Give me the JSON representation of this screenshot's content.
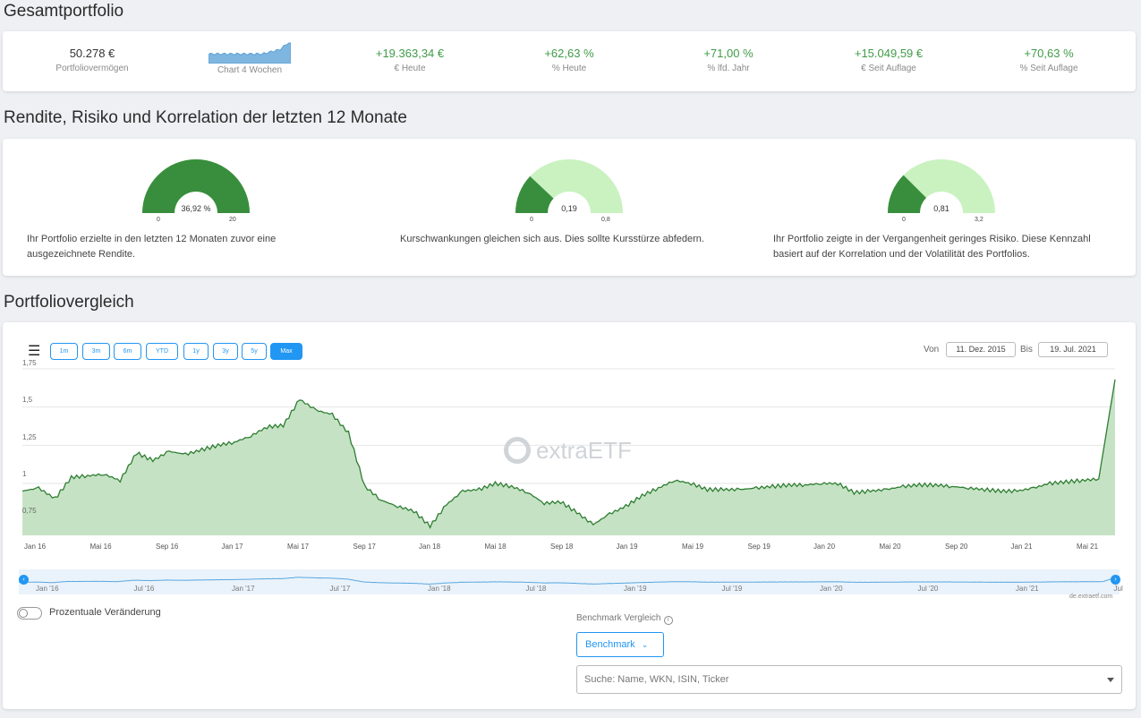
{
  "sections": {
    "overview_title": "Gesamtportfolio",
    "risk_title": "Rendite, Risiko und Korrelation der letzten 12 Monate",
    "compare_title": "Portfoliovergleich"
  },
  "kpis": [
    {
      "value": "50.278 €",
      "label": "Portfoliovermögen"
    },
    {
      "value": "",
      "label": "Chart 4 Wochen"
    },
    {
      "value": "+19.363,34  €",
      "label": "€ Heute"
    },
    {
      "value": "+62,63 %",
      "label": "% Heute"
    },
    {
      "value": "+71,00 %",
      "label": "% lfd. Jahr"
    },
    {
      "value": "+15.049,59  €",
      "label": "€ Seit Auflage"
    },
    {
      "value": "+70,63 %",
      "label": "% Seit Auflage"
    }
  ],
  "gauges": [
    {
      "value": "36,92 %",
      "min": "0",
      "max": "20",
      "fill_fraction": 1.0,
      "text": "Ihr Portfolio erzielte in den letzten 12 Monaten zuvor eine ausgezeichnete Rendite."
    },
    {
      "value": "0,19",
      "min": "0",
      "max": "0,8",
      "fill_fraction": 0.24,
      "text": "Kurschwankungen gleichen sich aus. Dies sollte Kursstürze abfedern."
    },
    {
      "value": "0,81",
      "min": "0",
      "max": "3,2",
      "fill_fraction": 0.25,
      "text": "Ihr Portfolio zeigte in der Vergangenheit geringes Risiko. Diese Kennzahl basiert auf der Korrelation und der Volatilität des Portfolios."
    }
  ],
  "colors": {
    "accent": "#2196f3",
    "positive": "#3f9b48",
    "gauge_dark": "#388e3c",
    "gauge_light": "#c9f2c0",
    "chart_line": "#2e7d32",
    "chart_fill": "#c5e3c4"
  },
  "range_buttons": [
    "1m",
    "3m",
    "6m",
    "YTD",
    "1y",
    "3y",
    "5y",
    "Max"
  ],
  "active_range": "Max",
  "date_range": {
    "from_label": "Von",
    "from": "11. Dez. 2015",
    "to_label": "Bis",
    "to": "19. Jul. 2021"
  },
  "watermark": "extraETF",
  "credit": "de.extraetf.com",
  "navigator_ticks": [
    "Jan '16",
    "Jul '16",
    "Jan '17",
    "Jul '17",
    "Jan '18",
    "Jul '18",
    "Jan '19",
    "Jul '19",
    "Jan '20",
    "Jul '20",
    "Jan '21",
    "Jul"
  ],
  "toggle_label": "Prozentuale Veränderung",
  "benchmark": {
    "title": "Benchmark Vergleich",
    "button": "Benchmark",
    "search_placeholder": "Suche: Name, WKN, ISIN, Ticker"
  },
  "chart_data": {
    "type": "area",
    "title": "",
    "xlabel": "",
    "ylabel": "",
    "ylim": [
      0.66,
      1.75
    ],
    "yticks": [
      "1,75",
      "1,5",
      "1,25",
      "1",
      "0,75"
    ],
    "ytick_values": [
      1.75,
      1.5,
      1.25,
      1.0,
      0.75
    ],
    "xticks": [
      "Jan 16",
      "Mai 16",
      "Sep 16",
      "Jan 17",
      "Mai 17",
      "Sep 17",
      "Jan 18",
      "Mai 18",
      "Sep 18",
      "Jan 19",
      "Mai 19",
      "Sep 19",
      "Jan 20",
      "Mai 20",
      "Sep 20",
      "Jan 21",
      "Mai 21"
    ],
    "grid": true,
    "legend": "none",
    "series": [
      {
        "x": [
          "2015-12",
          "2016-01",
          "2016-02",
          "2016-03",
          "2016-04",
          "2016-05",
          "2016-06",
          "2016-07",
          "2016-08",
          "2016-09",
          "2016-10",
          "2016-11",
          "2016-12",
          "2017-01",
          "2017-02",
          "2017-03",
          "2017-04",
          "2017-05",
          "2017-06",
          "2017-07",
          "2017-08",
          "2017-09",
          "2017-10",
          "2017-11",
          "2017-12",
          "2018-01",
          "2018-02",
          "2018-03",
          "2018-04",
          "2018-05",
          "2018-06",
          "2018-07",
          "2018-08",
          "2018-09",
          "2018-10",
          "2018-11",
          "2018-12",
          "2019-01",
          "2019-02",
          "2019-03",
          "2019-04",
          "2019-05",
          "2019-06",
          "2019-07",
          "2019-08",
          "2019-09",
          "2019-10",
          "2019-11",
          "2019-12",
          "2020-01",
          "2020-02",
          "2020-03",
          "2020-04",
          "2020-05",
          "2020-06",
          "2020-07",
          "2020-08",
          "2020-09",
          "2020-10",
          "2020-11",
          "2020-12",
          "2021-01",
          "2021-02",
          "2021-03",
          "2021-04",
          "2021-05",
          "2021-06",
          "2021-07"
        ],
        "values": [
          0.95,
          0.97,
          0.9,
          1.04,
          1.05,
          1.06,
          1.02,
          1.2,
          1.15,
          1.21,
          1.19,
          1.22,
          1.25,
          1.27,
          1.31,
          1.37,
          1.38,
          1.55,
          1.48,
          1.45,
          1.33,
          0.98,
          0.89,
          0.85,
          0.82,
          0.72,
          0.86,
          0.95,
          0.96,
          1.0,
          0.98,
          0.94,
          0.87,
          0.88,
          0.81,
          0.73,
          0.8,
          0.85,
          0.92,
          0.97,
          1.02,
          1.0,
          0.96,
          0.96,
          0.96,
          0.97,
          0.98,
          0.99,
          0.99,
          1.0,
          1.0,
          0.94,
          0.95,
          0.96,
          0.98,
          0.99,
          0.99,
          0.98,
          0.97,
          0.96,
          0.95,
          0.95,
          0.97,
          1.0,
          1.01,
          1.02,
          1.03,
          1.68
        ]
      }
    ]
  }
}
